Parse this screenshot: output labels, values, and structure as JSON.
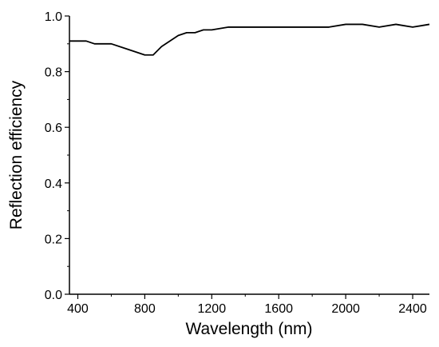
{
  "chart_data": {
    "type": "line",
    "title": "",
    "xlabel": "Wavelength (nm)",
    "ylabel": "Reflection efficiency",
    "xlim": [
      350,
      2500
    ],
    "ylim": [
      0.0,
      1.0
    ],
    "x_ticks": [
      400,
      800,
      1200,
      1600,
      2000,
      2400
    ],
    "x_tick_labels": [
      "400",
      "800",
      "1200",
      "1600",
      "2000",
      "2400"
    ],
    "y_ticks": [
      0.0,
      0.2,
      0.4,
      0.6,
      0.8,
      1.0
    ],
    "y_tick_labels": [
      "0.0",
      "0.2",
      "0.4",
      "0.6",
      "0.8",
      "1.0"
    ],
    "grid": false,
    "legend": "none",
    "colors": {
      "line": "#000000",
      "axis": "#000000"
    },
    "series": [
      {
        "x": [
          350,
          450,
          500,
          600,
          700,
          800,
          850,
          900,
          1000,
          1050,
          1100,
          1150,
          1200,
          1300,
          1400,
          1500,
          1600,
          1700,
          1800,
          1900,
          2000,
          2100,
          2200,
          2300,
          2350,
          2400,
          2450,
          2500
        ],
        "y": [
          0.91,
          0.91,
          0.9,
          0.9,
          0.88,
          0.86,
          0.86,
          0.89,
          0.93,
          0.94,
          0.94,
          0.95,
          0.95,
          0.96,
          0.96,
          0.96,
          0.96,
          0.96,
          0.96,
          0.96,
          0.97,
          0.97,
          0.96,
          0.97,
          0.965,
          0.96,
          0.965,
          0.97
        ]
      }
    ]
  }
}
